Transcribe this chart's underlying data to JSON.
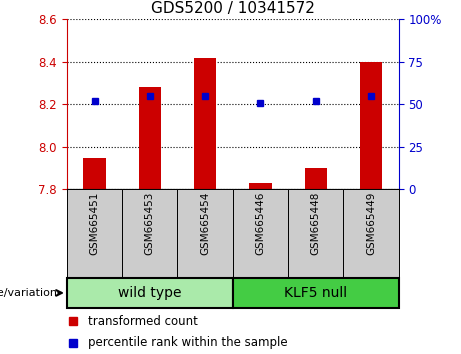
{
  "title": "GDS5200 / 10341572",
  "samples": [
    "GSM665451",
    "GSM665453",
    "GSM665454",
    "GSM665446",
    "GSM665448",
    "GSM665449"
  ],
  "transformed_counts": [
    7.95,
    8.28,
    8.42,
    7.83,
    7.9,
    8.4
  ],
  "percentile_ranks": [
    52,
    55,
    55,
    51,
    52,
    55
  ],
  "y_min": 7.8,
  "y_max": 8.6,
  "y_ticks": [
    7.8,
    8.0,
    8.2,
    8.4,
    8.6
  ],
  "y_right_ticks": [
    0,
    25,
    50,
    75,
    100
  ],
  "y_right_labels": [
    "0",
    "25",
    "50",
    "75",
    "100%"
  ],
  "left_axis_color": "#cc0000",
  "right_axis_color": "#0000cc",
  "bar_color": "#cc0000",
  "dot_color": "#0000cc",
  "wild_type_color": "#aaeaaa",
  "klf5_null_color": "#44cc44",
  "label_area_color": "#cccccc",
  "title_fontsize": 11,
  "bar_width": 0.4,
  "group_label_fontsize": 10,
  "sample_fontsize": 7.5,
  "legend_fontsize": 8.5,
  "genotype_fontsize": 8.0,
  "tick_fontsize": 8.5
}
